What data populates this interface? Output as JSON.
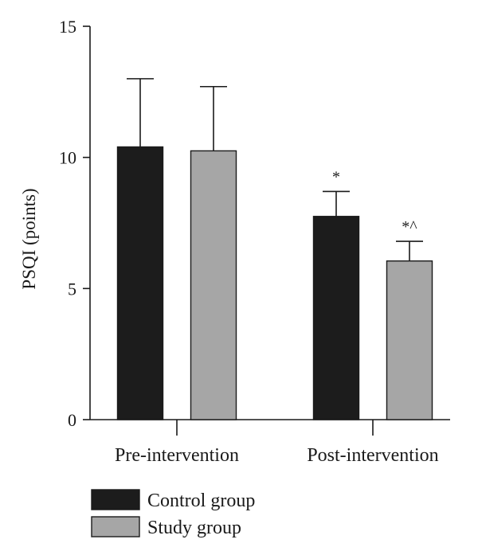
{
  "chart_data": {
    "type": "bar",
    "title": "",
    "xlabel": "",
    "ylabel": "PSQI (points)",
    "ylim": [
      0,
      15
    ],
    "yticks": [
      0,
      5,
      10,
      15
    ],
    "categories": [
      "Pre-intervention",
      "Post-intervention"
    ],
    "series": [
      {
        "name": "Control group",
        "color": "#1c1c1c",
        "values": [
          10.4,
          7.75
        ],
        "errors": [
          2.6,
          0.95
        ],
        "annotations": [
          "",
          "*"
        ]
      },
      {
        "name": "Study group",
        "color": "#a6a6a6",
        "values": [
          10.25,
          6.05
        ],
        "errors": [
          2.45,
          0.75
        ],
        "annotations": [
          "",
          "*^"
        ]
      }
    ],
    "grid": false,
    "legend_position": "bottom-left"
  }
}
